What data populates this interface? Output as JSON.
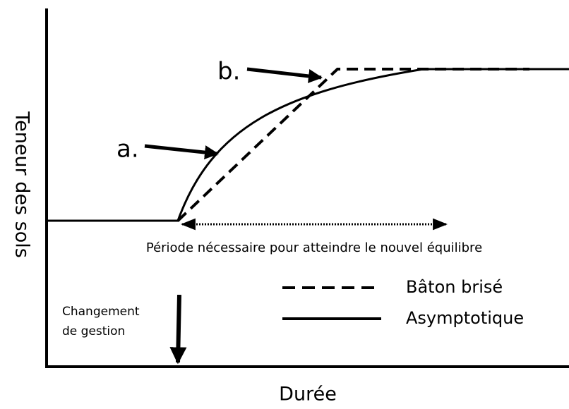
{
  "axes": {
    "y_label": "Teneur des sols",
    "x_label": "Durée"
  },
  "annotations": {
    "a": "a.",
    "b": "b.",
    "period": "Période nécessaire pour atteindre le nouvel équilibre",
    "change": [
      "Changement",
      "de gestion"
    ]
  },
  "legend": [
    {
      "label": "Bâton brisé"
    },
    {
      "label": "Asymptotique"
    }
  ]
}
